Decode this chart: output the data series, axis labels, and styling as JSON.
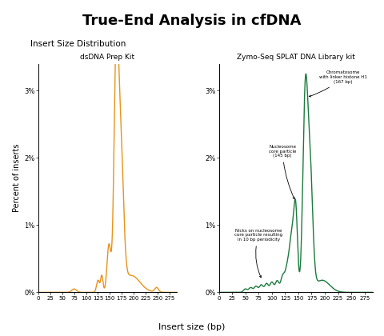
{
  "title": "True-End Analysis in cfDNA",
  "title_fontsize": 13,
  "subtitle": "Insert Size Distribution",
  "left_title": "dsDNA Prep Kit",
  "right_title": "Zymo-Seq SPLAT DNA Library kit",
  "xlabel": "Insert size (bp)",
  "ylabel": "Percent of inserts",
  "xlim": [
    0,
    290
  ],
  "ylim": [
    0,
    0.034
  ],
  "xticks": [
    0,
    25,
    50,
    75,
    100,
    125,
    150,
    175,
    200,
    225,
    250,
    275
  ],
  "yticks": [
    0,
    0.01,
    0.02,
    0.03
  ],
  "ytick_labels": [
    "0%",
    "1%",
    "2%",
    "3%"
  ],
  "orange_color": "#E8921A",
  "green_color": "#1A7A3C",
  "bg_color": "#ffffff",
  "annotation1_text": "Nicks on nucleosome\ncore particle resulting\nin 10 bp periodicity",
  "annotation2_text": "Nucleosome\ncore particle\n(145 bp)",
  "annotation3_text": "Chromatosome\nwith linker histone H1\n(167 bp)"
}
